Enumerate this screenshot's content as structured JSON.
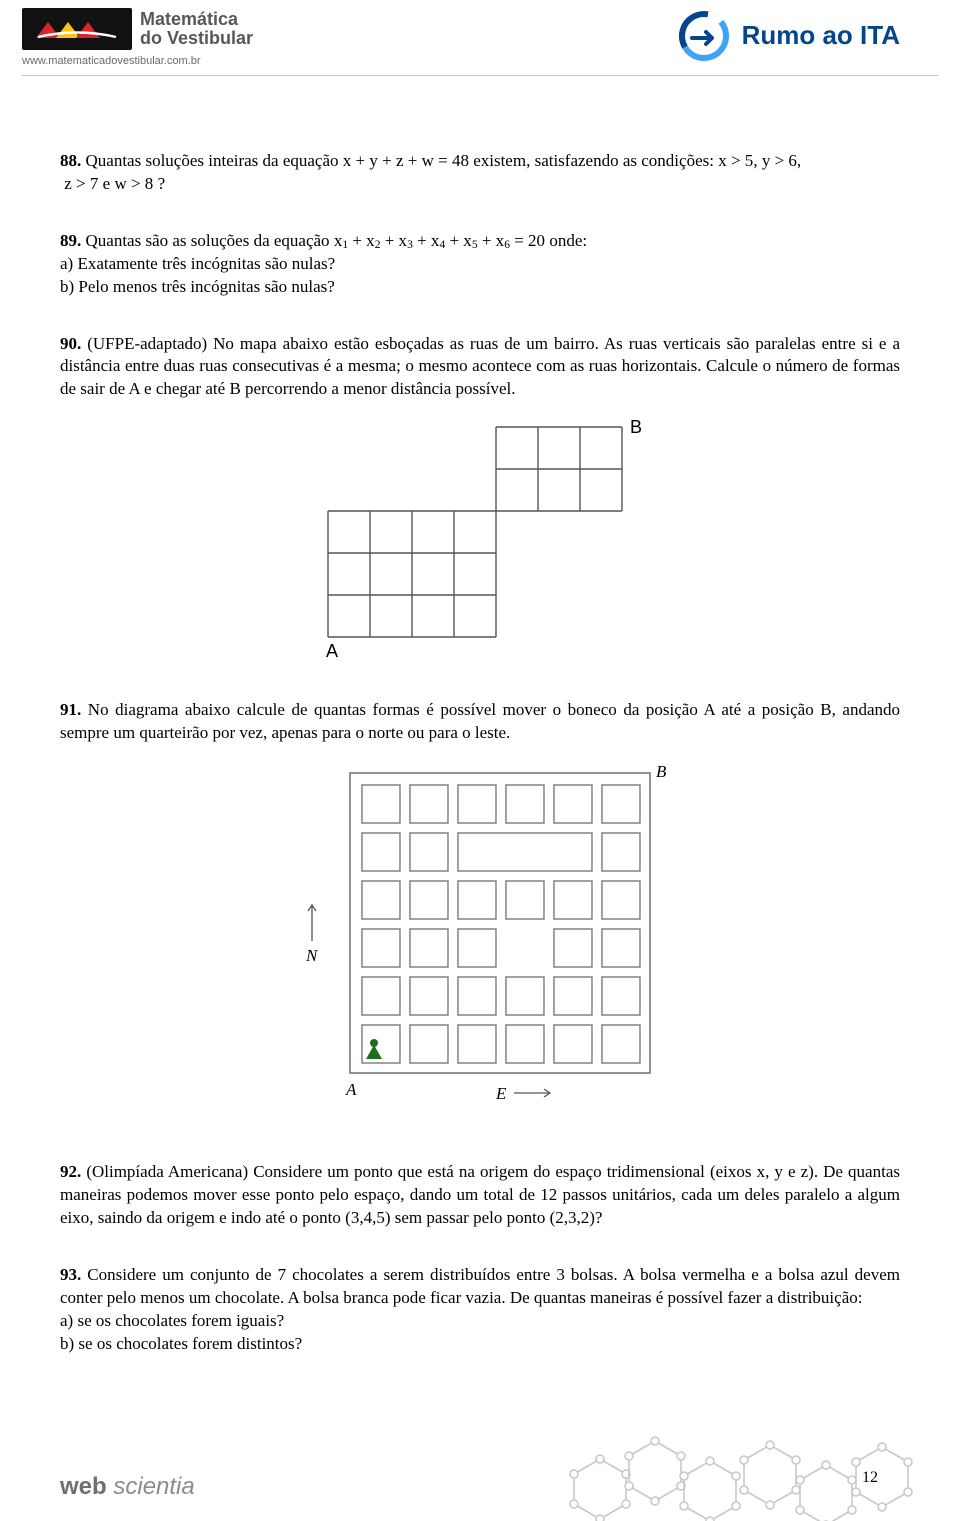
{
  "header": {
    "brand_line1": "Matemática",
    "brand_line2": "do Vestibular",
    "url": "www.matematicadovestibular.com.br",
    "right_brand": "Rumo ao ITA",
    "logo_colors": {
      "red": "#d8262c",
      "yellow": "#f6c51a",
      "bg": "#111111"
    },
    "ita_circle_light": "#3fa4f5",
    "ita_circle_dark": "#03468b",
    "rule_color": "#c9c9c9"
  },
  "q88": {
    "num": "88.",
    "t1": " Quantas soluções inteiras da equação ",
    "eq": "x + y + z + w = 48",
    "t2": " existem, satisfazendo as condições: ",
    "c1": "x > 5",
    "sep1": ", ",
    "c2": "y > 6",
    "sep2": ",",
    "line2a": "z > 7",
    "line2mid": " e ",
    "line2b": "w > 8",
    "line2end": " ?"
  },
  "q89": {
    "num": "89.",
    "t1": " Quantas são as soluções da equação ",
    "eq_pre": "x",
    "plus": " + ",
    "eqend": " = 20",
    "t2": " onde:",
    "a": "a) Exatamente três incógnitas são nulas?",
    "b": "b) Pelo menos três incógnitas são nulas?"
  },
  "q90": {
    "num": "90.",
    "text": " (UFPE-adaptado) No mapa abaixo estão esboçadas as ruas de um bairro. As ruas verticais são paralelas entre si e a distância entre duas ruas consecutivas é a mesma; o mesmo acontece com as ruas horizontais. Calcule o número de formas de sair de A e chegar até B percorrendo a menor distância possível.",
    "labelA": "A",
    "labelB": "B",
    "grid": {
      "cell": 42,
      "stroke": "#555555",
      "lower": {
        "cols": 4,
        "rows": 3
      },
      "upper": {
        "cols": 3,
        "rows": 2
      }
    }
  },
  "q91": {
    "num": "91.",
    "text": " No diagrama abaixo calcule de quantas formas é possível mover o boneco da posição A até a posição B, andando sempre um quarteirão por vez, apenas para o norte ou para o leste.",
    "labels": {
      "A": "A",
      "B": "B",
      "N": "N",
      "E": "E"
    },
    "grid": {
      "outer": 300,
      "margin": 12,
      "gap": 10,
      "cell": 38,
      "stroke": "#6f6f6f",
      "fill": "#ffffff",
      "pawn_color": "#1f6e1f",
      "rows": 6,
      "cols": 6,
      "merged_row": 1,
      "merged_start_col": 2,
      "merged_span": 3,
      "block_row": 3,
      "block_col": 3
    }
  },
  "q92": {
    "num": "92.",
    "text": " (Olimpíada Americana) Considere um ponto que está na origem do espaço tridimensional (eixos x, y e z). De quantas maneiras podemos mover esse ponto pelo espaço, dando um total de 12 passos unitários, cada um deles paralelo a algum eixo, saindo da origem e indo até o ponto (3,4,5) sem passar pelo ponto (2,3,2)?"
  },
  "q93": {
    "num": "93.",
    "text": " Considere um conjunto de 7 chocolates a serem distribuídos entre 3 bolsas. A bolsa vermelha e a bolsa azul devem conter pelo menos um chocolate. A bolsa branca pode ficar vazia. De quantas maneiras é possível fazer a distribuição:",
    "a": "a) se os chocolates forem iguais?",
    "b": "b) se os chocolates forem distintos?"
  },
  "footer": {
    "web": "web",
    "scientia": " scientia",
    "page": "12",
    "hex_stroke": "#c8c8c8"
  }
}
